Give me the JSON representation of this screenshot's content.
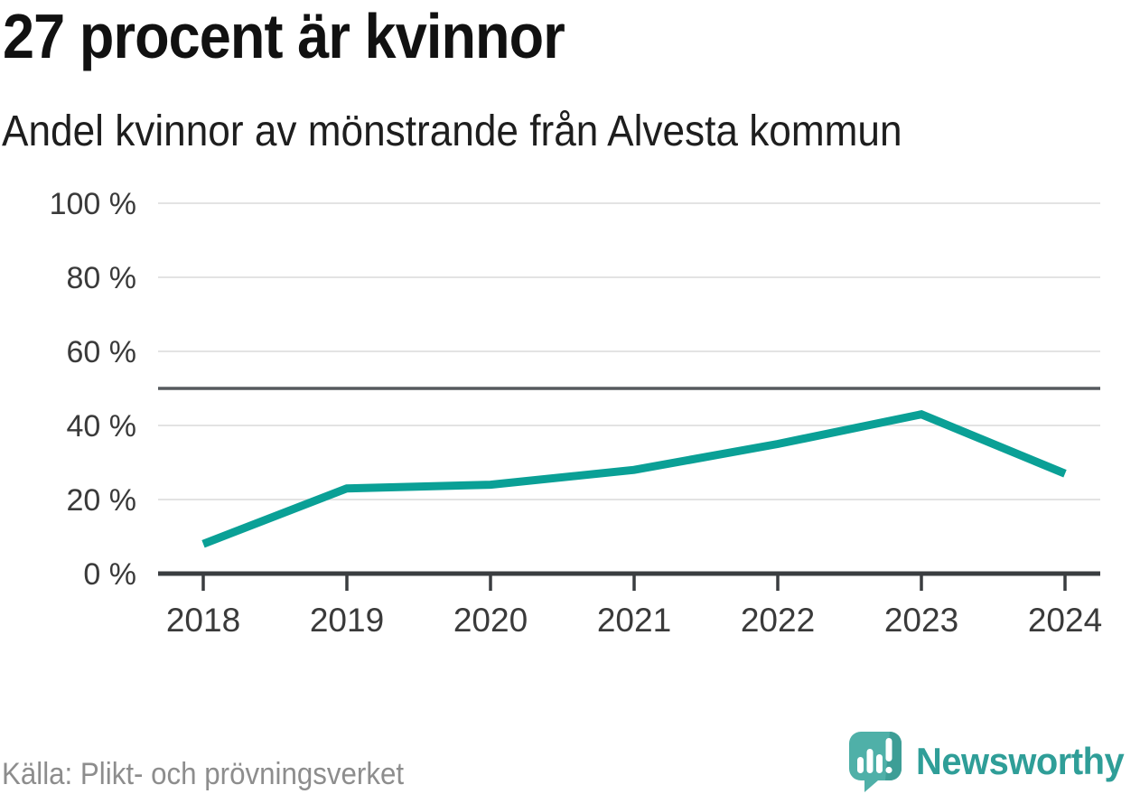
{
  "header": {
    "title": "27 procent är kvinnor",
    "subtitle": "Andel kvinnor av mönstrande från Alvesta kommun"
  },
  "chart_data": {
    "type": "line",
    "title": "27 procent är kvinnor",
    "subtitle": "Andel kvinnor av mönstrande från Alvesta kommun",
    "x": [
      2018,
      2019,
      2020,
      2021,
      2022,
      2023,
      2024
    ],
    "series": [
      {
        "name": "Andel kvinnor av mönstrande",
        "values": [
          8,
          23,
          24,
          28,
          35,
          43,
          27
        ]
      }
    ],
    "ylim": [
      0,
      100
    ],
    "yticks": [
      0,
      20,
      40,
      60,
      80,
      100
    ],
    "ytick_suffix": " %",
    "reference_line_y": 50,
    "grid": "horizontal",
    "legend": "none"
  },
  "footer": {
    "source": "Källa: Plikt- och prövningsverket",
    "brand": "Newsworthy"
  },
  "icons": {
    "logo": "newsworthy-speech-bubble-bar-chart-icon"
  },
  "colors": {
    "line_teal": "#0aa096",
    "logo_teal": "#4fb0a8",
    "logo_teal_dark": "#3d9e96",
    "brand_text_teal": "#2f9e98",
    "grid_light": "#e3e3e3",
    "reference_dark": "#565a5e",
    "axis_dark": "#3a3d40",
    "tick_label": "#3a3a3a",
    "title_text": "#111111",
    "source_text": "#8d8d8d",
    "background": "#ffffff"
  }
}
